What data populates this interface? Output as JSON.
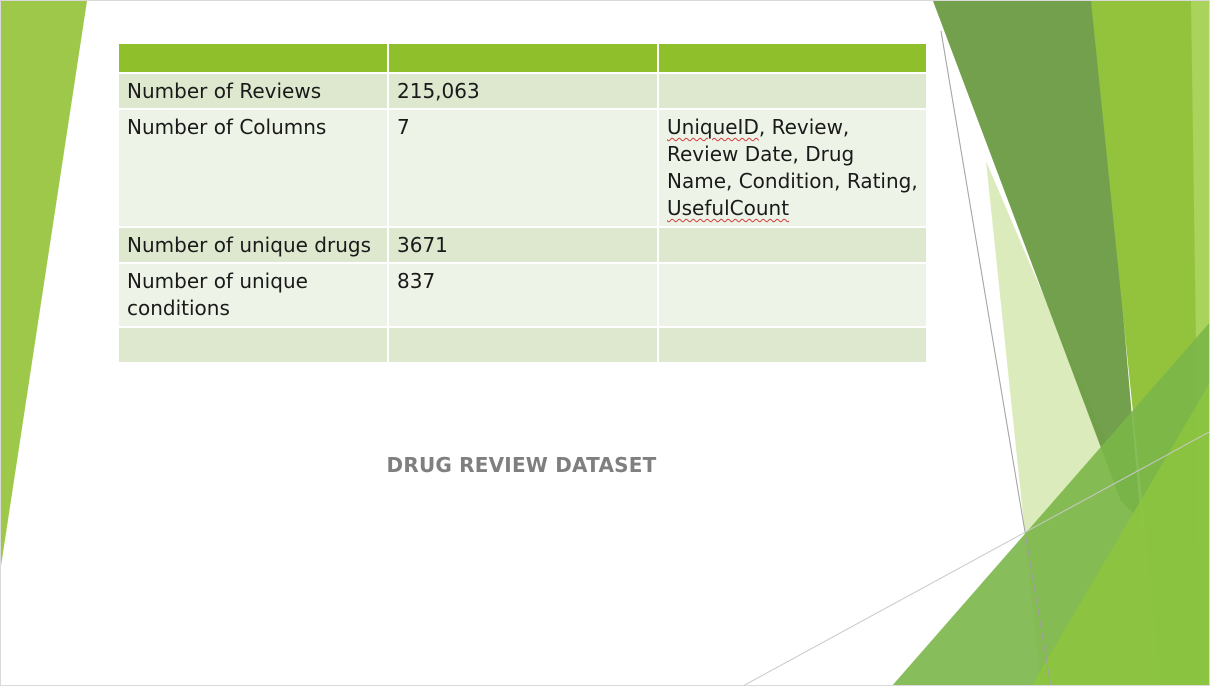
{
  "table": {
    "header": [
      "",
      "",
      ""
    ],
    "rows": [
      {
        "label": "Number of Reviews",
        "value": "215,063",
        "details": ""
      },
      {
        "label": "Number of Columns",
        "value": "7",
        "details_parts": [
          "UniqueID",
          ", Review, Review Date, Drug Name, Condition, Rating, ",
          "UsefulCount"
        ]
      },
      {
        "label": "Number of unique drugs",
        "value": "3671",
        "details": ""
      },
      {
        "label": "Number of unique conditions",
        "value": "837",
        "details": ""
      },
      {
        "label": "",
        "value": "",
        "details": ""
      }
    ]
  },
  "caption": "DRUG REVIEW DATASET",
  "colors": {
    "header": "#8fbf2a",
    "band_dark": "#dde8cf",
    "band_light": "#edf3e6",
    "accent_green": "#8dc63f",
    "dark_green": "#6a9e3b",
    "caption_gray": "#7f7f7f"
  }
}
